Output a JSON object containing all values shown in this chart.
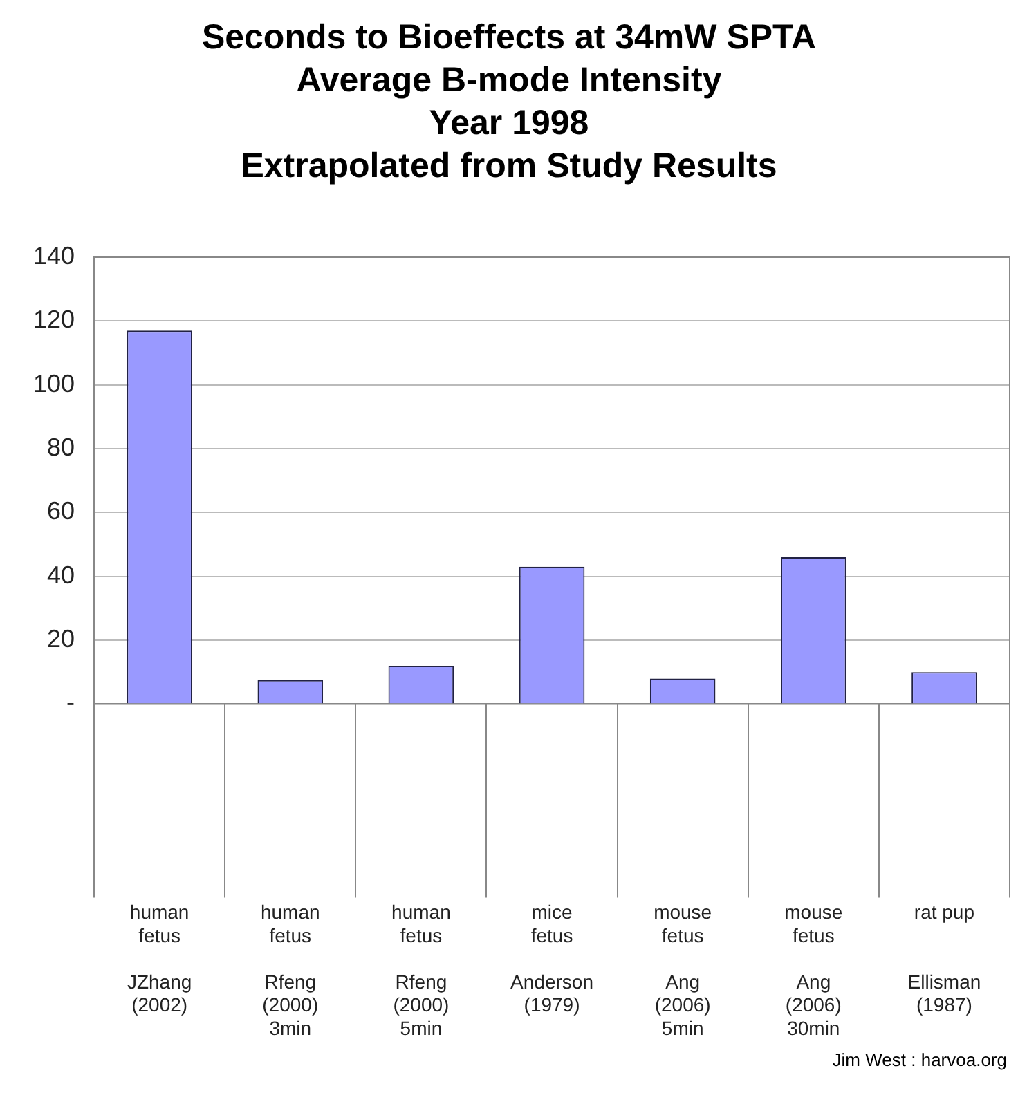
{
  "chart_data": {
    "type": "bar",
    "title": "Seconds to Bioeffects at 34mW SPTA\nAverage B-mode Intensity\nYear 1998\nExtrapolated from Study Results",
    "categories": [
      "human\nfetus\n\nJZhang\n(2002)",
      "human\nfetus\n\nRfeng\n(2000)\n3min",
      "human\nfetus\n\nRfeng\n(2000)\n5min",
      "mice\nfetus\n\nAnderson\n(1979)",
      "mouse\nfetus\n\nAng\n(2006)\n5min",
      "mouse\nfetus\n\nAng\n(2006)\n30min",
      "rat pup\n\n\nEllisman\n(1987)"
    ],
    "values": [
      117,
      7.5,
      12,
      43,
      8,
      46,
      10
    ],
    "color": "#9999ff",
    "ylim": [
      0,
      140
    ],
    "yticks": [
      {
        "value": 0,
        "label": "-"
      },
      20,
      40,
      60,
      80,
      100,
      120,
      140
    ],
    "grid": true,
    "annotations": [
      "Jim West : harvoa.org"
    ]
  }
}
